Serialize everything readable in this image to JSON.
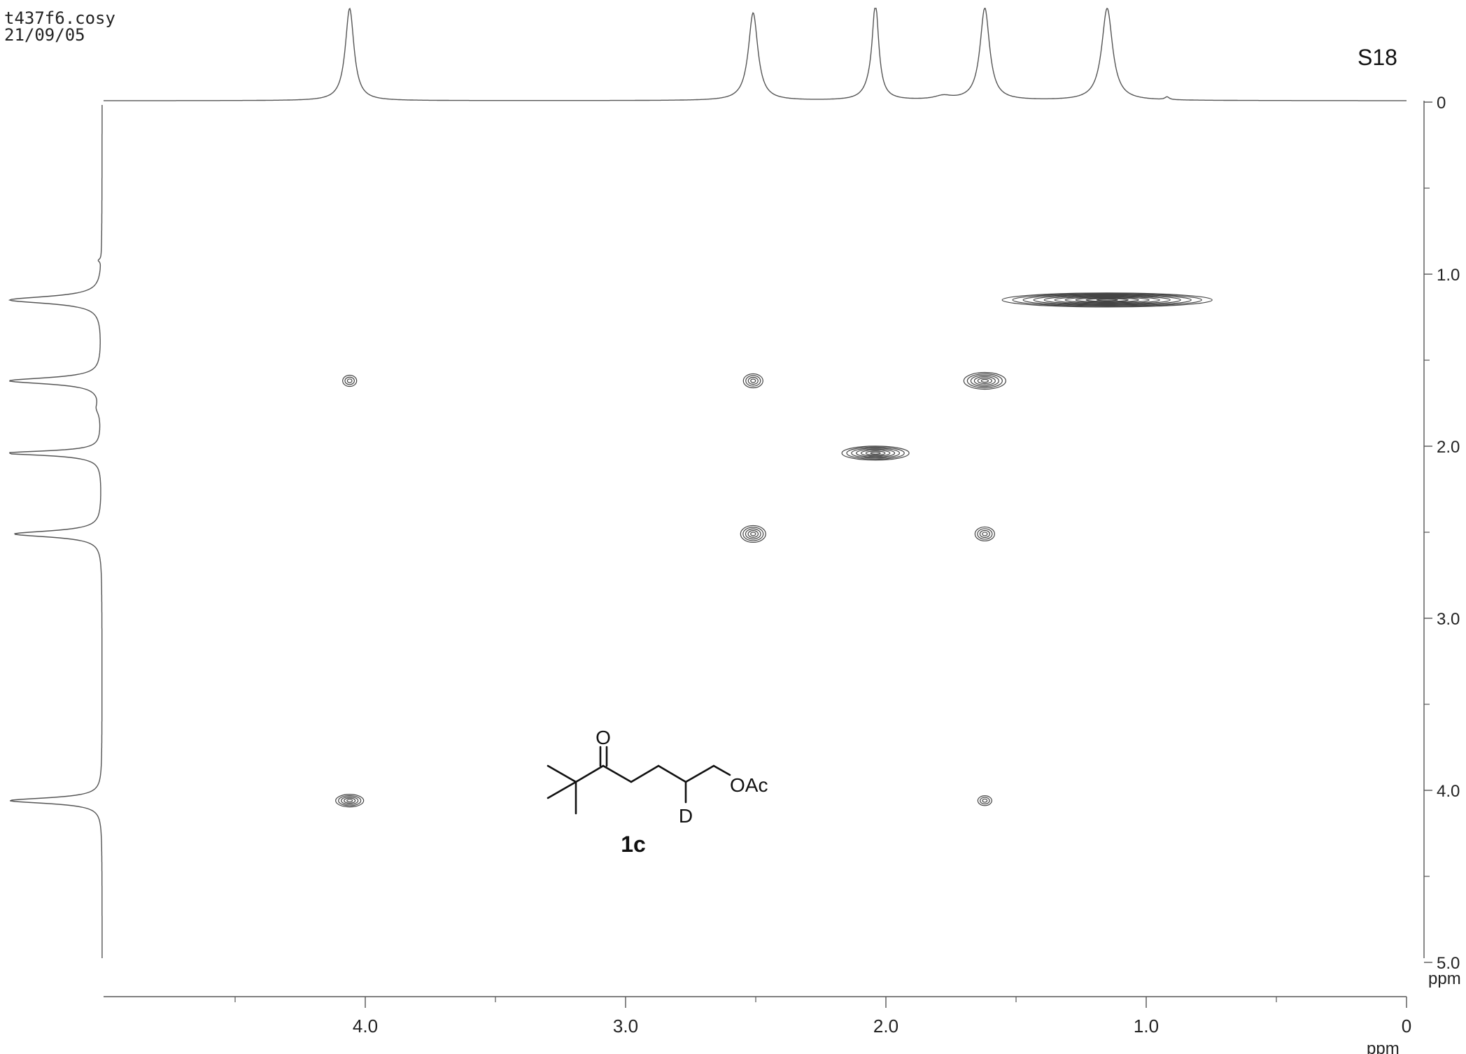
{
  "header": {
    "filename": "t437f6.cosy",
    "date": "21/09/05",
    "page_label": "S18"
  },
  "compound": {
    "label": "1c",
    "carbonyl_label": "O",
    "deuterium_label": "D",
    "ester_label": "OAc"
  },
  "chart_data": {
    "type": "heatmap",
    "subtype": "2D COSY NMR contour plot",
    "x_axis": {
      "unit_label": "ppm",
      "range": [
        5.0,
        0.0
      ],
      "direction": "decreasing",
      "tick_labels": [
        "4.0",
        "3.0",
        "2.0",
        "1.0",
        "0"
      ],
      "major_ticks": [
        4.0,
        3.0,
        2.0,
        1.0,
        0.0
      ],
      "minor_ticks": [
        4.5,
        3.5,
        2.5,
        1.5,
        0.5
      ]
    },
    "y_axis": {
      "unit_label": "ppm",
      "range": [
        0.0,
        5.0
      ],
      "direction": "increasing-downward",
      "tick_labels": [
        "0",
        "1.0",
        "2.0",
        "3.0",
        "4.0",
        "5.0"
      ],
      "major_ticks": [
        0.0,
        1.0,
        2.0,
        3.0,
        4.0,
        5.0
      ],
      "minor_ticks": [
        0.5,
        1.5,
        2.5,
        3.5,
        4.5
      ]
    },
    "projection_peaks_ppm": [
      4.06,
      2.51,
      2.04,
      1.62,
      1.15
    ],
    "diagonal_peaks": [
      {
        "x": 4.06,
        "y": 4.06
      },
      {
        "x": 2.51,
        "y": 2.51
      },
      {
        "x": 2.04,
        "y": 2.04
      },
      {
        "x": 1.62,
        "y": 1.62
      },
      {
        "x": 1.15,
        "y": 1.15
      }
    ],
    "cross_peaks": [
      {
        "x": 4.06,
        "y": 1.62
      },
      {
        "x": 2.51,
        "y": 1.62
      },
      {
        "x": 1.62,
        "y": 2.51
      },
      {
        "x": 1.62,
        "y": 4.06
      }
    ],
    "grid": false,
    "legend": "none"
  }
}
